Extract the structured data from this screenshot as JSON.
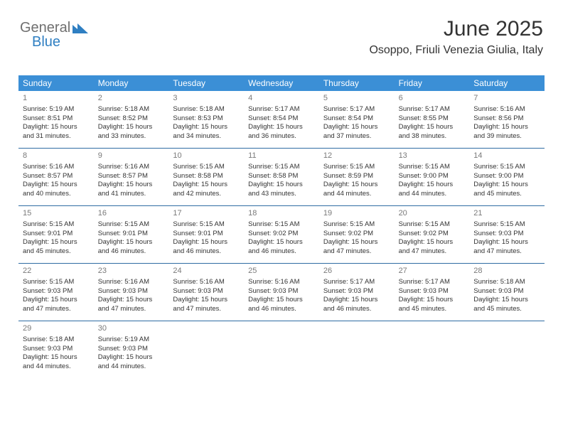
{
  "brand": {
    "word1": "General",
    "word2": "Blue",
    "shape_color": "#2f7fc2",
    "text1_color": "#6f6f6f",
    "text2_color": "#2f7fc2"
  },
  "header": {
    "title": "June 2025",
    "location": "Osoppo, Friuli Venezia Giulia, Italy"
  },
  "styling": {
    "header_bg": "#3b8fd6",
    "header_fg": "#ffffff",
    "separator_color": "#2f6ca3",
    "day_number_color": "#7a7a7a",
    "body_text_color": "#333333",
    "background": "#ffffff",
    "header_fontsize": 12,
    "cell_fontsize": 9.5,
    "title_fontsize": 30,
    "location_fontsize": 16
  },
  "weekdays": [
    "Sunday",
    "Monday",
    "Tuesday",
    "Wednesday",
    "Thursday",
    "Friday",
    "Saturday"
  ],
  "days": [
    {
      "n": "1",
      "sr": "5:19 AM",
      "ss": "8:51 PM",
      "dl": "15 hours and 31 minutes."
    },
    {
      "n": "2",
      "sr": "5:18 AM",
      "ss": "8:52 PM",
      "dl": "15 hours and 33 minutes."
    },
    {
      "n": "3",
      "sr": "5:18 AM",
      "ss": "8:53 PM",
      "dl": "15 hours and 34 minutes."
    },
    {
      "n": "4",
      "sr": "5:17 AM",
      "ss": "8:54 PM",
      "dl": "15 hours and 36 minutes."
    },
    {
      "n": "5",
      "sr": "5:17 AM",
      "ss": "8:54 PM",
      "dl": "15 hours and 37 minutes."
    },
    {
      "n": "6",
      "sr": "5:17 AM",
      "ss": "8:55 PM",
      "dl": "15 hours and 38 minutes."
    },
    {
      "n": "7",
      "sr": "5:16 AM",
      "ss": "8:56 PM",
      "dl": "15 hours and 39 minutes."
    },
    {
      "n": "8",
      "sr": "5:16 AM",
      "ss": "8:57 PM",
      "dl": "15 hours and 40 minutes."
    },
    {
      "n": "9",
      "sr": "5:16 AM",
      "ss": "8:57 PM",
      "dl": "15 hours and 41 minutes."
    },
    {
      "n": "10",
      "sr": "5:15 AM",
      "ss": "8:58 PM",
      "dl": "15 hours and 42 minutes."
    },
    {
      "n": "11",
      "sr": "5:15 AM",
      "ss": "8:58 PM",
      "dl": "15 hours and 43 minutes."
    },
    {
      "n": "12",
      "sr": "5:15 AM",
      "ss": "8:59 PM",
      "dl": "15 hours and 44 minutes."
    },
    {
      "n": "13",
      "sr": "5:15 AM",
      "ss": "9:00 PM",
      "dl": "15 hours and 44 minutes."
    },
    {
      "n": "14",
      "sr": "5:15 AM",
      "ss": "9:00 PM",
      "dl": "15 hours and 45 minutes."
    },
    {
      "n": "15",
      "sr": "5:15 AM",
      "ss": "9:01 PM",
      "dl": "15 hours and 45 minutes."
    },
    {
      "n": "16",
      "sr": "5:15 AM",
      "ss": "9:01 PM",
      "dl": "15 hours and 46 minutes."
    },
    {
      "n": "17",
      "sr": "5:15 AM",
      "ss": "9:01 PM",
      "dl": "15 hours and 46 minutes."
    },
    {
      "n": "18",
      "sr": "5:15 AM",
      "ss": "9:02 PM",
      "dl": "15 hours and 46 minutes."
    },
    {
      "n": "19",
      "sr": "5:15 AM",
      "ss": "9:02 PM",
      "dl": "15 hours and 47 minutes."
    },
    {
      "n": "20",
      "sr": "5:15 AM",
      "ss": "9:02 PM",
      "dl": "15 hours and 47 minutes."
    },
    {
      "n": "21",
      "sr": "5:15 AM",
      "ss": "9:03 PM",
      "dl": "15 hours and 47 minutes."
    },
    {
      "n": "22",
      "sr": "5:15 AM",
      "ss": "9:03 PM",
      "dl": "15 hours and 47 minutes."
    },
    {
      "n": "23",
      "sr": "5:16 AM",
      "ss": "9:03 PM",
      "dl": "15 hours and 47 minutes."
    },
    {
      "n": "24",
      "sr": "5:16 AM",
      "ss": "9:03 PM",
      "dl": "15 hours and 47 minutes."
    },
    {
      "n": "25",
      "sr": "5:16 AM",
      "ss": "9:03 PM",
      "dl": "15 hours and 46 minutes."
    },
    {
      "n": "26",
      "sr": "5:17 AM",
      "ss": "9:03 PM",
      "dl": "15 hours and 46 minutes."
    },
    {
      "n": "27",
      "sr": "5:17 AM",
      "ss": "9:03 PM",
      "dl": "15 hours and 45 minutes."
    },
    {
      "n": "28",
      "sr": "5:18 AM",
      "ss": "9:03 PM",
      "dl": "15 hours and 45 minutes."
    },
    {
      "n": "29",
      "sr": "5:18 AM",
      "ss": "9:03 PM",
      "dl": "15 hours and 44 minutes."
    },
    {
      "n": "30",
      "sr": "5:19 AM",
      "ss": "9:03 PM",
      "dl": "15 hours and 44 minutes."
    }
  ],
  "labels": {
    "sunrise": "Sunrise:",
    "sunset": "Sunset:",
    "daylight": "Daylight:"
  }
}
